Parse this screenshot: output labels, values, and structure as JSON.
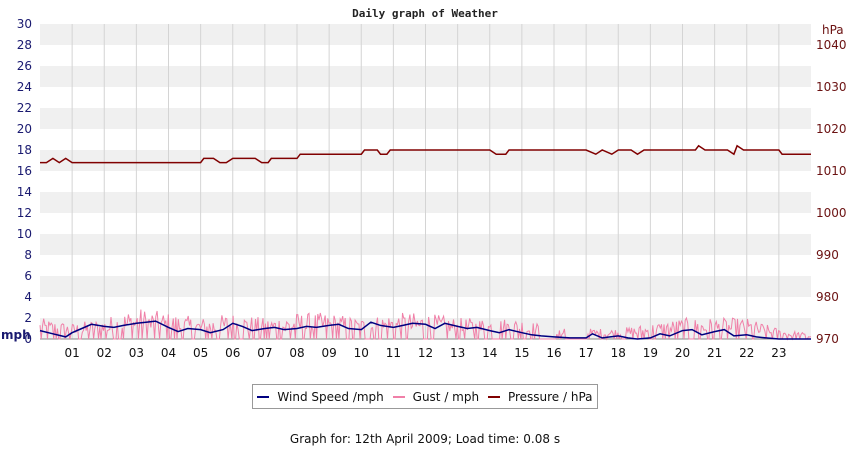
{
  "chart_data": {
    "type": "line",
    "title": "Daily graph of Weather",
    "x": [
      "01",
      "02",
      "03",
      "04",
      "05",
      "06",
      "07",
      "08",
      "09",
      "10",
      "11",
      "12",
      "13",
      "14",
      "15",
      "16",
      "17",
      "18",
      "19",
      "20",
      "21",
      "22",
      "23"
    ],
    "xlim": [
      0,
      24
    ],
    "y_left": {
      "unit": "mph",
      "ylim": [
        0,
        30
      ],
      "ticks": [
        0,
        2,
        4,
        6,
        8,
        10,
        12,
        14,
        16,
        18,
        20,
        22,
        24,
        26,
        28,
        30
      ]
    },
    "y_right": {
      "unit": "hPa",
      "ylim": [
        970,
        1045
      ],
      "ticks": [
        970,
        980,
        990,
        1000,
        1010,
        1020,
        1030,
        1040
      ]
    },
    "grid": true,
    "series": [
      {
        "name": "Wind Speed /mph",
        "color": "#000080",
        "axis": "left",
        "points": [
          [
            0,
            0.8
          ],
          [
            0.4,
            0.5
          ],
          [
            0.8,
            0.2
          ],
          [
            1.0,
            0.6
          ],
          [
            1.3,
            1.0
          ],
          [
            1.6,
            1.4
          ],
          [
            2.0,
            1.2
          ],
          [
            2.3,
            1.1
          ],
          [
            2.6,
            1.3
          ],
          [
            3.0,
            1.5
          ],
          [
            3.3,
            1.6
          ],
          [
            3.6,
            1.7
          ],
          [
            4.0,
            1.1
          ],
          [
            4.3,
            0.7
          ],
          [
            4.6,
            1.0
          ],
          [
            5.0,
            0.9
          ],
          [
            5.3,
            0.6
          ],
          [
            5.7,
            0.9
          ],
          [
            6.0,
            1.5
          ],
          [
            6.3,
            1.2
          ],
          [
            6.6,
            0.8
          ],
          [
            7.0,
            1.0
          ],
          [
            7.3,
            1.1
          ],
          [
            7.6,
            0.9
          ],
          [
            8.0,
            1.0
          ],
          [
            8.3,
            1.2
          ],
          [
            8.6,
            1.1
          ],
          [
            9.0,
            1.3
          ],
          [
            9.3,
            1.4
          ],
          [
            9.6,
            1.0
          ],
          [
            10.0,
            0.9
          ],
          [
            10.3,
            1.6
          ],
          [
            10.6,
            1.3
          ],
          [
            11.0,
            1.1
          ],
          [
            11.3,
            1.3
          ],
          [
            11.6,
            1.5
          ],
          [
            12.0,
            1.4
          ],
          [
            12.3,
            1.0
          ],
          [
            12.6,
            1.5
          ],
          [
            13.0,
            1.2
          ],
          [
            13.3,
            1.0
          ],
          [
            13.6,
            1.1
          ],
          [
            14.0,
            0.8
          ],
          [
            14.3,
            0.6
          ],
          [
            14.6,
            0.9
          ],
          [
            15.0,
            0.6
          ],
          [
            15.3,
            0.4
          ],
          [
            15.6,
            0.3
          ],
          [
            16.0,
            0.2
          ],
          [
            16.5,
            0.1
          ],
          [
            17.0,
            0.1
          ],
          [
            17.2,
            0.5
          ],
          [
            17.5,
            0.1
          ],
          [
            18.0,
            0.3
          ],
          [
            18.3,
            0.1
          ],
          [
            18.6,
            0.0
          ],
          [
            19.0,
            0.1
          ],
          [
            19.3,
            0.5
          ],
          [
            19.6,
            0.3
          ],
          [
            20.0,
            0.8
          ],
          [
            20.3,
            0.9
          ],
          [
            20.6,
            0.4
          ],
          [
            21.0,
            0.7
          ],
          [
            21.3,
            0.9
          ],
          [
            21.6,
            0.3
          ],
          [
            22.0,
            0.4
          ],
          [
            22.3,
            0.2
          ],
          [
            22.6,
            0.1
          ],
          [
            23.0,
            0.0
          ],
          [
            24.0,
            0.0
          ]
        ]
      },
      {
        "name": "Gust / mph",
        "color": "#f080a8",
        "axis": "left",
        "summary": "dense spikes, mostly 0-3 mph",
        "max_envelope": [
          [
            0,
            2.0
          ],
          [
            1,
            1.5
          ],
          [
            2,
            2.0
          ],
          [
            3,
            3.0
          ],
          [
            4,
            2.5
          ],
          [
            5,
            2.0
          ],
          [
            6,
            2.5
          ],
          [
            7,
            2.0
          ],
          [
            8,
            2.5
          ],
          [
            9,
            2.5
          ],
          [
            10,
            2.0
          ],
          [
            11,
            2.5
          ],
          [
            12,
            2.5
          ],
          [
            13,
            2.0
          ],
          [
            14,
            2.0
          ],
          [
            15,
            2.0
          ],
          [
            16,
            1.0
          ],
          [
            17,
            1.0
          ],
          [
            18,
            1.0
          ],
          [
            19,
            1.5
          ],
          [
            20,
            2.0
          ],
          [
            21,
            2.0
          ],
          [
            22,
            2.0
          ],
          [
            23,
            1.0
          ],
          [
            24,
            0.5
          ]
        ]
      },
      {
        "name": "Pressure / hPa",
        "color": "#800000",
        "axis": "right",
        "points": [
          [
            0,
            1012.0
          ],
          [
            0.2,
            1012.0
          ],
          [
            0.4,
            1013.0
          ],
          [
            0.6,
            1012.0
          ],
          [
            0.8,
            1013.0
          ],
          [
            1.0,
            1012.0
          ],
          [
            2.0,
            1012.0
          ],
          [
            3.0,
            1012.0
          ],
          [
            4.0,
            1012.0
          ],
          [
            5.0,
            1012.0
          ],
          [
            5.1,
            1013.0
          ],
          [
            5.4,
            1013.0
          ],
          [
            5.6,
            1012.0
          ],
          [
            5.8,
            1012.0
          ],
          [
            6.0,
            1013.0
          ],
          [
            6.7,
            1013.0
          ],
          [
            6.9,
            1012.0
          ],
          [
            7.1,
            1012.0
          ],
          [
            7.2,
            1013.0
          ],
          [
            8.0,
            1013.0
          ],
          [
            8.1,
            1014.0
          ],
          [
            9.0,
            1014.0
          ],
          [
            10.0,
            1014.0
          ],
          [
            10.1,
            1015.0
          ],
          [
            10.5,
            1015.0
          ],
          [
            10.6,
            1014.0
          ],
          [
            10.8,
            1014.0
          ],
          [
            10.9,
            1015.0
          ],
          [
            12.0,
            1015.0
          ],
          [
            13.0,
            1015.0
          ],
          [
            14.0,
            1015.0
          ],
          [
            14.2,
            1014.0
          ],
          [
            14.5,
            1014.0
          ],
          [
            14.6,
            1015.0
          ],
          [
            16.0,
            1015.0
          ],
          [
            17.0,
            1015.0
          ],
          [
            17.3,
            1014.0
          ],
          [
            17.5,
            1015.0
          ],
          [
            17.8,
            1014.0
          ],
          [
            18.0,
            1015.0
          ],
          [
            18.4,
            1015.0
          ],
          [
            18.6,
            1014.0
          ],
          [
            18.8,
            1015.0
          ],
          [
            19.0,
            1015.0
          ],
          [
            20.0,
            1015.0
          ],
          [
            20.4,
            1015.0
          ],
          [
            20.5,
            1016.0
          ],
          [
            20.7,
            1015.0
          ],
          [
            21.0,
            1015.0
          ],
          [
            21.4,
            1015.0
          ],
          [
            21.6,
            1014.0
          ],
          [
            21.7,
            1016.0
          ],
          [
            21.9,
            1015.0
          ],
          [
            23.0,
            1015.0
          ],
          [
            23.1,
            1014.0
          ],
          [
            24.0,
            1014.0
          ]
        ]
      }
    ]
  },
  "legend": {
    "wind_label": "Wind Speed /mph",
    "gust_label": "Gust / mph",
    "pressure_label": "Pressure / hPa"
  },
  "footer": {
    "text": "Graph for: 12th April 2009; Load time: 0.08 s"
  }
}
